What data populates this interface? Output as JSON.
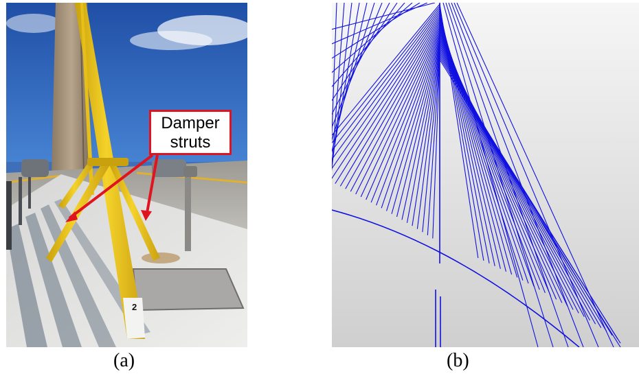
{
  "figure": {
    "panel_a": {
      "caption": "(a)",
      "callout": {
        "line1": "Damper",
        "line2": "struts"
      },
      "post_number": "2"
    },
    "panel_b": {
      "caption": "(b)"
    }
  },
  "colors": {
    "callout_border": "#e0141e",
    "arrow": "#e0141e",
    "strut_yellow": "#f2c81a",
    "cable_blue": "#1010e0",
    "sky": "#2a5bb0"
  }
}
